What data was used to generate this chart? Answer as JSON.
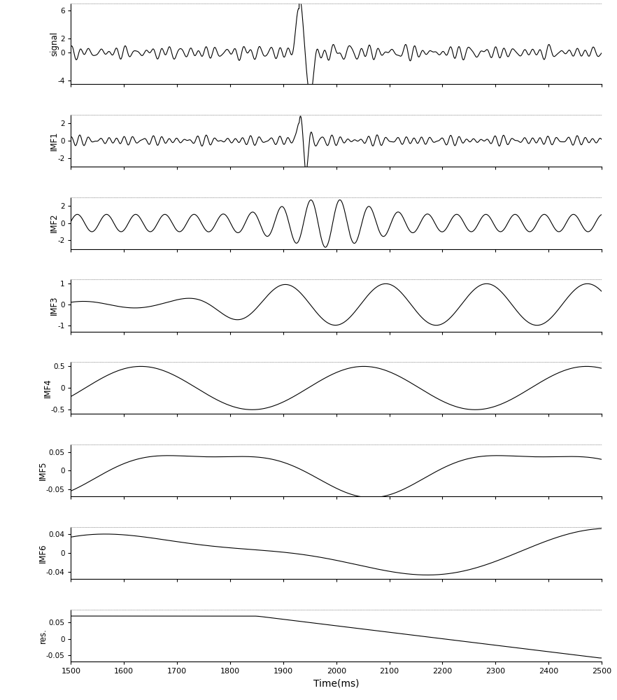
{
  "xlim": [
    1500,
    2500
  ],
  "x_ticks": [
    1500,
    1600,
    1700,
    1800,
    1900,
    2000,
    2100,
    2200,
    2300,
    2400,
    2500
  ],
  "panels": [
    {
      "label": "signal",
      "ylim": [
        -4.5,
        7
      ],
      "yticks": [
        -4,
        0,
        2,
        6
      ]
    },
    {
      "label": "IMF1",
      "ylim": [
        -3,
        3
      ],
      "yticks": [
        -2,
        0,
        2
      ]
    },
    {
      "label": "IMF2",
      "ylim": [
        -3,
        3
      ],
      "yticks": [
        -2,
        0,
        2
      ]
    },
    {
      "label": "IMF3",
      "ylim": [
        -1.3,
        1.2
      ],
      "yticks": [
        -1,
        0,
        1
      ]
    },
    {
      "label": "IMF4",
      "ylim": [
        -0.6,
        0.6
      ],
      "yticks": [
        -0.5,
        0,
        0.5
      ]
    },
    {
      "label": "IMF5",
      "ylim": [
        -0.07,
        0.07
      ],
      "yticks": [
        -0.05,
        0,
        0.05
      ]
    },
    {
      "label": "IMF6",
      "ylim": [
        -0.055,
        0.055
      ],
      "yticks": [
        -0.04,
        0,
        0.04
      ]
    },
    {
      "label": "res.",
      "ylim": [
        -0.07,
        0.09
      ],
      "yticks": [
        -0.05,
        0,
        0.05
      ]
    }
  ],
  "xlabel": "Time(ms)",
  "line_color": "#000000",
  "line_width": 0.8,
  "fig_bg": "#ffffff",
  "axes_bg": "#ffffff",
  "height_ratios": [
    1.55,
    1.0,
    1.0,
    1.0,
    1.0,
    1.0,
    1.0,
    1.0
  ]
}
